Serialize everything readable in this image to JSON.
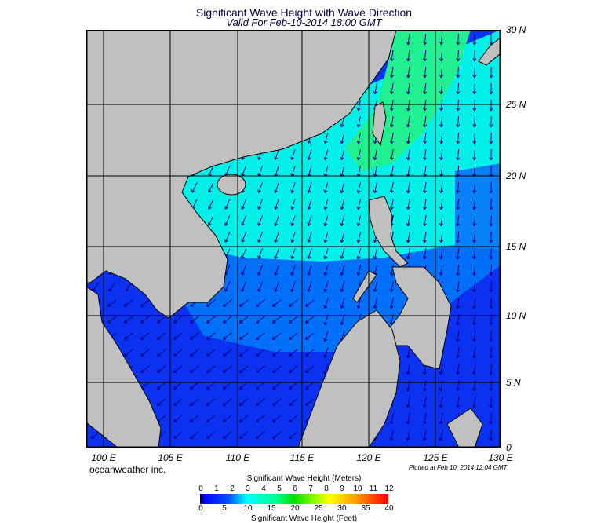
{
  "header": {
    "title": "Significant Wave Height with Wave Direction",
    "subtitle": "Valid For Feb-10-2014 18:00 GMT"
  },
  "map": {
    "lon_labels": [
      "100 E",
      "105 E",
      "110 E",
      "115 E",
      "120 E",
      "125 E",
      "130 E"
    ],
    "lat_labels": [
      "30 N",
      "25 N",
      "20 N",
      "15 N",
      "10 N",
      "5 N",
      "0"
    ],
    "colors": {
      "land": "#c0c0c0",
      "arrow": "#000080",
      "deep_blue": "#0a32f0",
      "mid_blue": "#0070f8",
      "cyan": "#00f0e8",
      "green": "#20f090"
    }
  },
  "footer": {
    "credit": "oceanweather inc.",
    "plotted": "Plotted at Feb 10, 2014 12:04 GMT"
  },
  "colorbar": {
    "meters_label": "Significant Wave Height (Meters)",
    "meters_ticks": [
      "0",
      "1",
      "2",
      "3",
      "4",
      "5",
      "6",
      "7",
      "8",
      "9",
      "10",
      "11",
      "12"
    ],
    "feet_label": "Significant Wave Height (Feet)",
    "feet_ticks": [
      "0",
      "5",
      "10",
      "15",
      "20",
      "25",
      "30",
      "35",
      "40"
    ]
  }
}
